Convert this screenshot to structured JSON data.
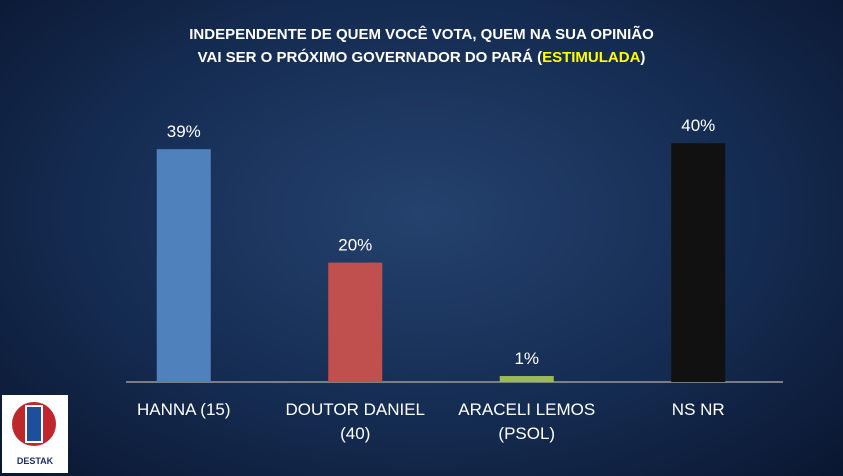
{
  "chart_data": {
    "type": "bar",
    "title": [
      "INDEPENDENTE DE QUEM VOCÊ VOTA, QUEM NA SUA OPINIÃO",
      "VAI SER O PRÓXIMO GOVERNADOR DO PARÁ (",
      "ESTIMULADA",
      ")"
    ],
    "categories": [
      "HANNA (15)",
      "DOUTOR DANIEL (40)",
      "ARACELI LEMOS (PSOL)",
      "NS NR"
    ],
    "values": [
      39,
      20,
      1,
      40
    ],
    "value_labels": [
      "39%",
      "20%",
      "1%",
      "40%"
    ],
    "colors": [
      "#4f81bd",
      "#c0504d",
      "#9bbb59",
      "#111111"
    ],
    "grid": false
  },
  "logo": {
    "text": "DESTAK"
  }
}
